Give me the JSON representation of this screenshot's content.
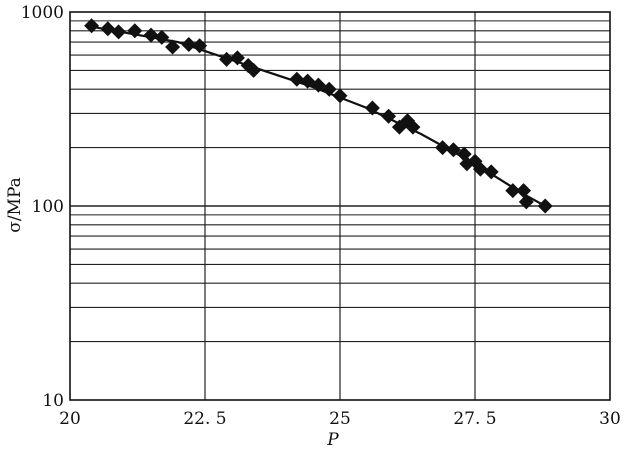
{
  "chart_data": {
    "type": "scatter",
    "xlabel": "P",
    "ylabel": "σ/MPa",
    "xlim": [
      20,
      30
    ],
    "ylim": [
      10,
      1000
    ],
    "yscale": "log",
    "grid": true,
    "x_ticks": [
      "20",
      "22. 5",
      "25",
      "27. 5",
      "30"
    ],
    "y_ticks": [
      "10",
      "100",
      "1000"
    ],
    "series": [
      {
        "marker": "diamond",
        "color": "#111111",
        "points": [
          [
            20.4,
            850
          ],
          [
            20.7,
            820
          ],
          [
            20.9,
            790
          ],
          [
            21.2,
            800
          ],
          [
            21.5,
            760
          ],
          [
            21.7,
            740
          ],
          [
            21.9,
            660
          ],
          [
            22.2,
            680
          ],
          [
            22.4,
            670
          ],
          [
            22.9,
            570
          ],
          [
            23.1,
            580
          ],
          [
            23.3,
            530
          ],
          [
            23.4,
            500
          ],
          [
            24.2,
            450
          ],
          [
            24.4,
            440
          ],
          [
            24.6,
            420
          ],
          [
            24.8,
            400
          ],
          [
            25.0,
            370
          ],
          [
            25.6,
            320
          ],
          [
            25.9,
            290
          ],
          [
            26.1,
            255
          ],
          [
            26.25,
            275
          ],
          [
            26.35,
            255
          ],
          [
            26.9,
            200
          ],
          [
            27.1,
            195
          ],
          [
            27.3,
            185
          ],
          [
            27.35,
            165
          ],
          [
            27.5,
            170
          ],
          [
            27.6,
            155
          ],
          [
            27.8,
            150
          ],
          [
            28.2,
            120
          ],
          [
            28.4,
            120
          ],
          [
            28.45,
            105
          ],
          [
            28.8,
            100
          ]
        ]
      }
    ],
    "trend_line": {
      "x": [
        20.4,
        22.0,
        23.3,
        24.5,
        25.5,
        26.5,
        27.5,
        28.4,
        28.8
      ],
      "y": [
        840,
        700,
        530,
        410,
        320,
        235,
        165,
        115,
        100
      ]
    }
  }
}
